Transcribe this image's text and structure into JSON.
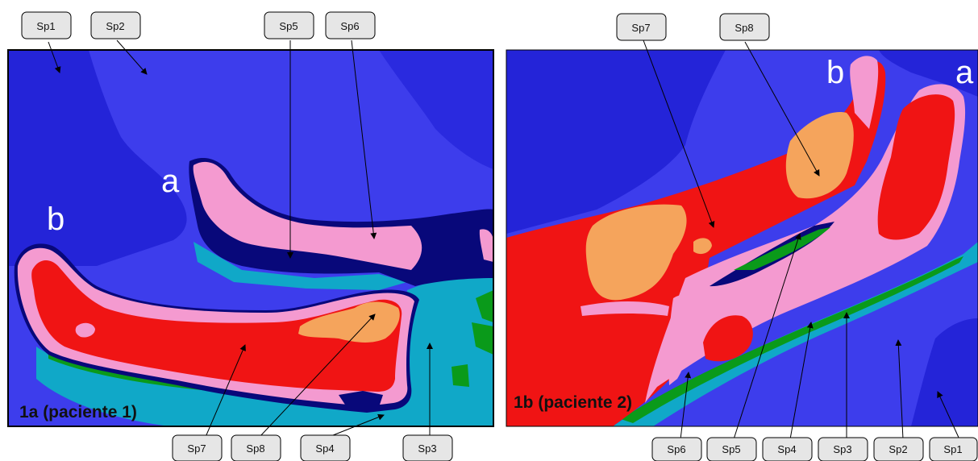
{
  "panels": {
    "left": {
      "title": "1a (paciente 1)",
      "letter_a": "a",
      "letter_b": "b"
    },
    "right": {
      "title": "1b (paciente 2)",
      "letter_a": "a",
      "letter_b": "b"
    }
  },
  "labels": {
    "left_top": [
      "Sp1",
      "Sp2",
      "Sp5",
      "Sp6"
    ],
    "left_bottom": [
      "Sp7",
      "Sp8",
      "Sp4",
      "Sp3"
    ],
    "right_top": [
      "Sp7",
      "Sp8"
    ],
    "right_bottom": [
      "Sp6",
      "Sp5",
      "Sp4",
      "Sp3",
      "Sp2",
      "Sp1"
    ]
  },
  "colors": {
    "sp1_dark_blue": "#2424d8",
    "sp2_blue": "#3d3dec",
    "sp3_cyan": "#10a8c8",
    "sp4_green": "#0a9a1a",
    "sp5_navy": "#08087a",
    "sp6_pink": "#f49ad0",
    "sp7_red": "#f01414",
    "sp8_orange": "#f5a45c",
    "label_fill": "#e6e6e6"
  }
}
